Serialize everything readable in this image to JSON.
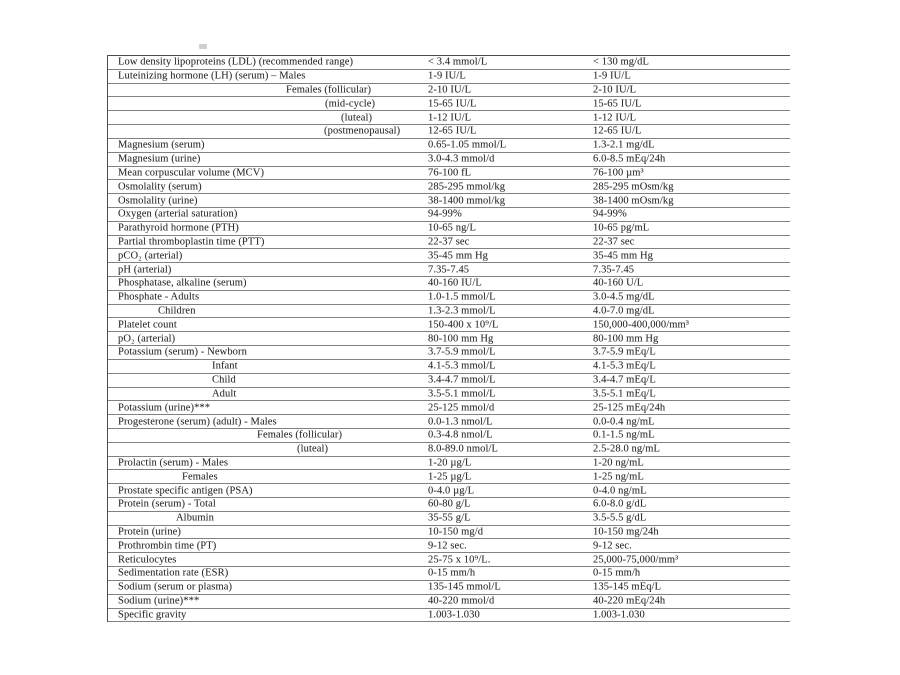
{
  "colors": {
    "page_background": "#ffffff",
    "text": "#282828",
    "row_line": "#818181",
    "outer_border": "#4d4d4d"
  },
  "table": {
    "rows": [
      {
        "name": "Low density lipoproteins (LDL) (recommended range)",
        "si": "< 3.4 mmol/L",
        "conv": "< 130 mg/dL",
        "indent": 10
      },
      {
        "name": "Luteinizing hormone (LH) (serum) – Males",
        "si": "1-9 IU/L",
        "conv": "1-9 IU/L",
        "indent": 10
      },
      {
        "name": "Females (follicular)",
        "si": "2-10 IU/L",
        "conv": "2-10 IU/L",
        "indent": 178
      },
      {
        "name": "(mid-cycle)",
        "si": "15-65 IU/L",
        "conv": "15-65 IU/L",
        "indent": 217
      },
      {
        "name": "(luteal)",
        "si": "1-12 IU/L",
        "conv": "1-12 IU/L",
        "indent": 233
      },
      {
        "name": "(postmenopausal)",
        "si": "12-65 IU/L",
        "conv": "12-65 IU/L",
        "indent": 216
      },
      {
        "name": "Magnesium (serum)",
        "si": "0.65-1.05 mmol/L",
        "conv": "1.3-2.1 mg/dL",
        "indent": 10
      },
      {
        "name": "Magnesium (urine)",
        "si": "3.0-4.3 mmol/d",
        "conv": "6.0-8.5 mEq/24h",
        "indent": 10
      },
      {
        "name": "Mean corpuscular volume (MCV)",
        "si": "76-100 fL",
        "conv": "76-100 µm³",
        "indent": 10
      },
      {
        "name": "Osmolality (serum)",
        "si": "285-295 mmol/kg",
        "conv": "285-295 mOsm/kg",
        "indent": 10
      },
      {
        "name": "Osmolality (urine)",
        "si": "38-1400 mmol/kg",
        "conv": "38-1400 mOsm/kg",
        "indent": 10
      },
      {
        "name": "Oxygen (arterial saturation)",
        "si": "94-99%",
        "conv": "94-99%",
        "indent": 10
      },
      {
        "name": "Parathyroid hormone (PTH)",
        "si": "10-65 ng/L",
        "conv": "10-65 pg/mL",
        "indent": 10
      },
      {
        "name": "Partial thromboplastin time (PTT)",
        "si": "22-37 sec",
        "conv": "22-37 sec",
        "indent": 10
      },
      {
        "name": "pCO₂ (arterial)",
        "si": "35-45 mm Hg",
        "conv": "35-45 mm Hg",
        "indent": 10
      },
      {
        "name": "pH (arterial)",
        "si": "7.35-7.45",
        "conv": "7.35-7.45",
        "indent": 10
      },
      {
        "name": "Phosphatase, alkaline (serum)",
        "si": "40-160 IU/L",
        "conv": "40-160 U/L",
        "indent": 10
      },
      {
        "name": "Phosphate - Adults",
        "si": "1.0-1.5 mmol/L",
        "conv": "3.0-4.5 mg/dL",
        "indent": 10
      },
      {
        "name": "Children",
        "si": "1.3-2.3 mmol/L",
        "conv": "4.0-7.0 mg/dL",
        "indent": 50
      },
      {
        "name": "Platelet count",
        "si": "150-400 x 10⁹/L",
        "conv": "150,000-400,000/mm³",
        "indent": 10
      },
      {
        "name": "pO₂ (arterial)",
        "si": "80-100 mm Hg",
        "conv": "80-100 mm Hg",
        "indent": 10
      },
      {
        "name": "Potassium (serum) - Newborn",
        "si": "3.7-5.9 mmol/L",
        "conv": "3.7-5.9 mEq/L",
        "indent": 10
      },
      {
        "name": "Infant",
        "si": "4.1-5.3 mmol/L",
        "conv": "4.1-5.3 mEq/L",
        "indent": 104
      },
      {
        "name": "Child",
        "si": "3.4-4.7 mmol/L",
        "conv": "3.4-4.7 mEq/L",
        "indent": 104
      },
      {
        "name": "Adult",
        "si": "3.5-5.1 mmol/L",
        "conv": "3.5-5.1 mEq/L",
        "indent": 104
      },
      {
        "name": "Potassium (urine)***",
        "si": "25-125 mmol/d",
        "conv": "25-125 mEq/24h",
        "indent": 10
      },
      {
        "name": "Progesterone (serum) (adult) - Males",
        "si": "0.0-1.3 nmol/L",
        "conv": "0.0-0.4 ng/mL",
        "indent": 10
      },
      {
        "name": "Females (follicular)",
        "si": "0.3-4.8 nmol/L",
        "conv": "0.1-1.5 ng/mL",
        "indent": 149
      },
      {
        "name": "(luteal)",
        "si": "8.0-89.0 nmol/L",
        "conv": "2.5-28.0 ng/mL",
        "indent": 189
      },
      {
        "name": "Prolactin (serum) - Males",
        "si": "1-20 µg/L",
        "conv": "1-20 ng/mL",
        "indent": 10
      },
      {
        "name": "Females",
        "si": "1-25 µg/L",
        "conv": "1-25 ng/mL",
        "indent": 74
      },
      {
        "name": "Prostate specific antigen (PSA)",
        "si": "0-4.0 µg/L",
        "conv": "0-4.0 ng/mL",
        "indent": 10
      },
      {
        "name": "Protein (serum) - Total",
        "si": "60-80 g/L",
        "conv": "6.0-8.0 g/dL",
        "indent": 10
      },
      {
        "name": "Albumin",
        "si": "35-55 g/L",
        "conv": "3.5-5.5 g/dL",
        "indent": 68
      },
      {
        "name": "Protein (urine)",
        "si": "10-150 mg/d",
        "conv": "10-150 mg/24h",
        "indent": 10
      },
      {
        "name": "Prothrombin time (PT)",
        "si": "9-12 sec.",
        "conv": "9-12 sec.",
        "indent": 10
      },
      {
        "name": "Reticulocytes",
        "si": "25-75 x 10⁹/L.",
        "conv": "25,000-75,000/mm³",
        "indent": 10
      },
      {
        "name": "Sedimentation rate (ESR)",
        "si": "0-15 mm/h",
        "conv": "0-15 mm/h",
        "indent": 10
      },
      {
        "name": "Sodium (serum or plasma)",
        "si": "135-145 mmol/L",
        "conv": "135-145 mEq/L",
        "indent": 10
      },
      {
        "name": "Sodium (urine)***",
        "si": "40-220 mmol/d",
        "conv": "40-220 mEq/24h",
        "indent": 10
      },
      {
        "name": "Specific gravity",
        "si": "1.003-1.030",
        "conv": "1.003-1.030",
        "indent": 10
      }
    ]
  }
}
